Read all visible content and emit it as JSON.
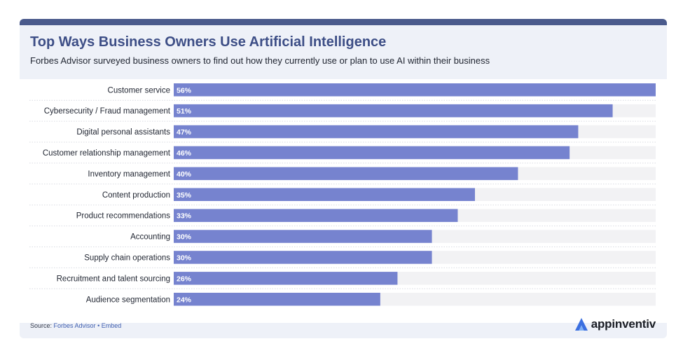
{
  "header": {
    "title": "Top Ways Business Owners Use Artificial Intelligence",
    "subtitle": "Forbes Advisor surveyed business owners to find out how they currently use or plan to use AI within their business"
  },
  "footer": {
    "source_prefix": "Source: ",
    "source_name": "Forbes Advisor",
    "separator": " • ",
    "embed_label": "Embed",
    "brand_name": "appinventiv",
    "brand_icon": "appinventiv-logo-icon"
  },
  "colors": {
    "bar": "#7683cf",
    "track": "#f2f2f4",
    "label_text": "#222733",
    "value_text": "#ffffff",
    "title": "#3d4e86",
    "brand_icon": "#3b6fe0"
  },
  "chart_data": {
    "type": "bar",
    "orientation": "horizontal",
    "title": "Top Ways Business Owners Use Artificial Intelligence",
    "subtitle": "Forbes Advisor surveyed business owners to find out how they currently use or plan to use AI within their business",
    "xlim": [
      0,
      56
    ],
    "value_suffix": "%",
    "categories": [
      "Customer service",
      "Cybersecurity / Fraud management",
      "Digital personal assistants",
      "Customer relationship management",
      "Inventory management",
      "Content production",
      "Product recommendations",
      "Accounting",
      "Supply chain operations",
      "Recruitment and talent sourcing",
      "Audience segmentation"
    ],
    "values": [
      56,
      51,
      47,
      46,
      40,
      35,
      33,
      30,
      30,
      26,
      24
    ],
    "value_labels": [
      "56%",
      "51%",
      "47%",
      "46%",
      "40%",
      "35%",
      "33%",
      "30%",
      "30%",
      "26%",
      "24%"
    ],
    "grid": false,
    "legend": "none"
  }
}
